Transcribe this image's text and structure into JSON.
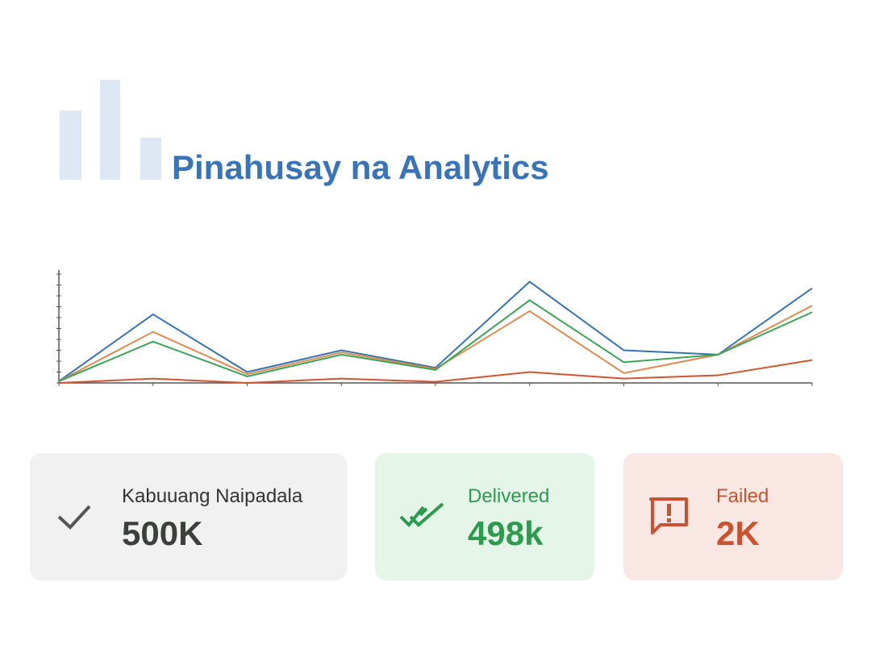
{
  "header": {
    "title": "Pinahusay na Analytics"
  },
  "chart_data": {
    "type": "line",
    "categories": [
      null,
      null,
      null,
      null,
      null,
      null,
      null,
      null,
      null
    ],
    "ylim": [
      0,
      10
    ],
    "yticks": [
      0,
      1,
      2,
      3,
      4,
      5,
      6,
      7,
      8,
      9,
      10
    ],
    "series": [
      {
        "color": "#3574b4",
        "values": [
          0.15,
          6.3,
          1.0,
          3.0,
          1.4,
          9.3,
          3.0,
          2.6,
          8.7
        ]
      },
      {
        "color": "#e08a4e",
        "values": [
          0.15,
          4.7,
          0.8,
          2.8,
          1.3,
          6.6,
          0.9,
          2.6,
          7.1
        ]
      },
      {
        "color": "#3aa556",
        "values": [
          0.15,
          3.8,
          0.6,
          2.6,
          1.2,
          7.6,
          1.9,
          2.6,
          6.5
        ]
      },
      {
        "color": "#d0552f",
        "values": [
          0,
          0.4,
          0,
          0.4,
          0.1,
          1.0,
          0.4,
          0.7,
          2.1
        ]
      }
    ]
  },
  "cards": [
    {
      "label": "Kabuuang Naipadala",
      "value": "500K"
    },
    {
      "label": "Delivered",
      "value": "498k"
    },
    {
      "label": "Failed",
      "value": "2K"
    }
  ]
}
